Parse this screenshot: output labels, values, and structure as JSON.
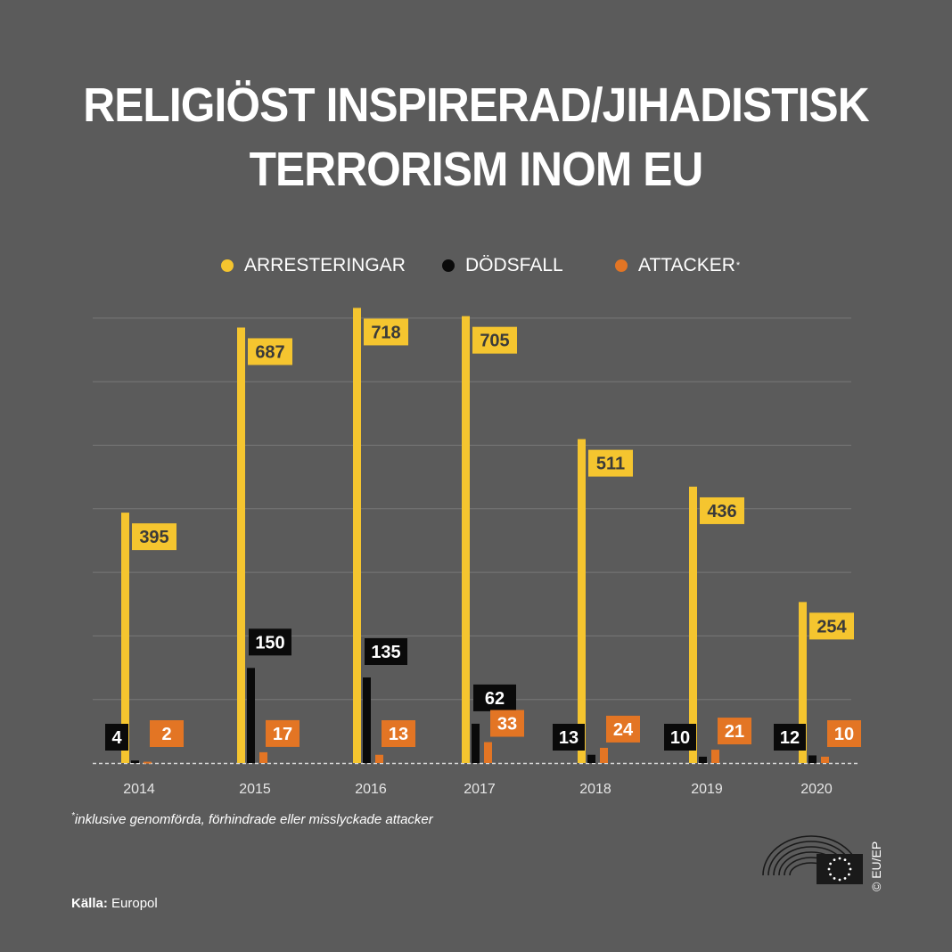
{
  "title": {
    "line1": "RELIGIÖST INSPIRERAD/JIHADISTISK",
    "line2": "TERRORISM INOM EU"
  },
  "legend": [
    {
      "label": "ARRESTERINGAR",
      "color": "#f5c52f",
      "note": ""
    },
    {
      "label": "DÖDSFALL",
      "color": "#0a0a0a",
      "note": ""
    },
    {
      "label": "ATTACKER",
      "color": "#e37524",
      "note": "*"
    }
  ],
  "footnote": {
    "marker": "*",
    "text": "inklusive genomförda, förhindrade eller misslyckade attacker"
  },
  "source": {
    "label": "Källa:",
    "value": "Europol"
  },
  "copyright": "© EU/EP",
  "logo": {
    "name": "european-parliament-hemicycle-logo"
  },
  "chart_data": {
    "type": "bar",
    "title": "RELIGIÖST INSPIRERAD/JIHADISTISK TERRORISM INOM EU",
    "xlabel": "",
    "ylabel": "",
    "ylim": [
      0,
      720
    ],
    "grid": true,
    "legend_position": "top",
    "categories": [
      "2014",
      "2015",
      "2016",
      "2017",
      "2018",
      "2019",
      "2020"
    ],
    "series": [
      {
        "name": "ARRESTERINGAR",
        "color": "#f5c52f",
        "values": [
          395,
          687,
          718,
          705,
          511,
          436,
          254
        ]
      },
      {
        "name": "DÖDSFALL",
        "color": "#0a0a0a",
        "values": [
          4,
          150,
          135,
          62,
          13,
          10,
          12
        ]
      },
      {
        "name": "ATTACKER",
        "color": "#e37524",
        "values": [
          2,
          17,
          13,
          33,
          24,
          21,
          10
        ]
      }
    ]
  }
}
